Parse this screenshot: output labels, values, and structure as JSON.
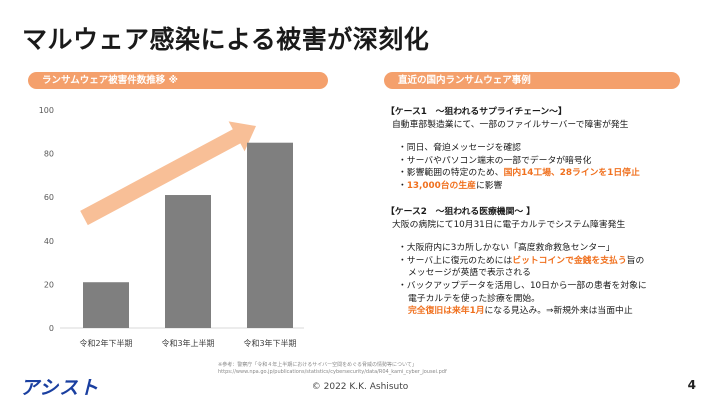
{
  "title": "マルウェア感染による被害が深刻化",
  "left_header": "ランサムウェア被害件数推移 ※",
  "right_header": "直近の国内ランサムウェア事例",
  "chart_data": {
    "type": "bar",
    "categories": [
      "令和2年下半期",
      "令和3年上半期",
      "令和3年下半期"
    ],
    "values": [
      21,
      61,
      85
    ],
    "ylim": [
      0,
      100
    ],
    "yticks": [
      0,
      20,
      40,
      60,
      80,
      100
    ],
    "bar_color": "#7f7f7f",
    "arrow_color": "#f8bf97",
    "grid": false
  },
  "case1": {
    "title": "【ケース1　～狙われるサプライチェーン～】",
    "subtitle": "自動車部製造業にて、一部のファイルサーバーで障害が発生",
    "b1": "・同日、脅迫メッセージを確認",
    "b2": "・サーバやパソコン端末の一部でデータが暗号化",
    "b3_pre": "・影響範囲の特定のため、",
    "b3_hl": "国内14工場、28ラインを1日停止",
    "b4_pre": "・",
    "b4_hl": "13,000台の生産",
    "b4_post": "に影響"
  },
  "case2": {
    "title": "【ケース2　～狙われる医療機関～ 】",
    "subtitle": "大阪の病院にて10月31日に電子カルテでシステム障害発生",
    "b1": "・大阪府内に3カ所しかない「高度救命救急センター」",
    "b2_pre": "・サーバ上に復元のためには",
    "b2_hl": "ビットコインで金銭を支払う",
    "b2_post": "旨の",
    "b2_cont": "メッセージが英語で表示される",
    "b3": "・バックアップデータを活用し、10日から一部の患者を対象に",
    "b3_cont": "電子カルテを使った診療を開始。",
    "b3_hl": "完全復旧は来年1月",
    "b3_post": "になる見込み。⇒新規外来は当面中止"
  },
  "source_line1": "※参考：警察庁「令和４年上半期におけるサイバー空間をめぐる脅威の情勢等について」",
  "source_line2": "https://www.npa.go.jp/publications/statistics/cybersecurity/data/R04_kami_cyber_jousei.pdf",
  "logo": "アシスト",
  "copyright": "© 2022 K.K. Ashisuto",
  "page_number": "4"
}
